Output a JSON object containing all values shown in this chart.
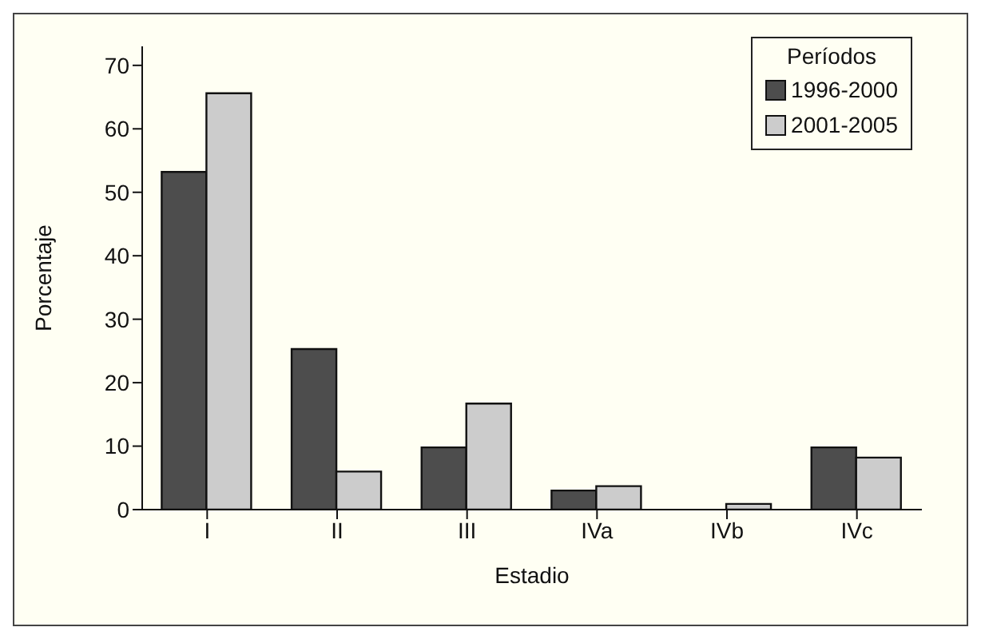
{
  "chart_data": {
    "type": "bar",
    "xlabel": "Estadio",
    "ylabel": "Porcentaje",
    "legend_title": "Períodos",
    "legend": "top right",
    "categories": [
      "I",
      "II",
      "III",
      "IVa",
      "IVb",
      "IVc"
    ],
    "series": [
      {
        "name": "1996-2000",
        "color": "#4d4d4d",
        "values": [
          53.2,
          25.3,
          9.8,
          3,
          0,
          9.8
        ]
      },
      {
        "name": "2001-2005",
        "color": "#cccccc",
        "values": [
          65.6,
          6,
          16.7,
          3.7,
          0.9,
          8.2
        ]
      }
    ],
    "ylim": [
      0,
      73
    ],
    "yticks": [
      0,
      10,
      20,
      30,
      40,
      50,
      60,
      70
    ],
    "grid": false
  }
}
